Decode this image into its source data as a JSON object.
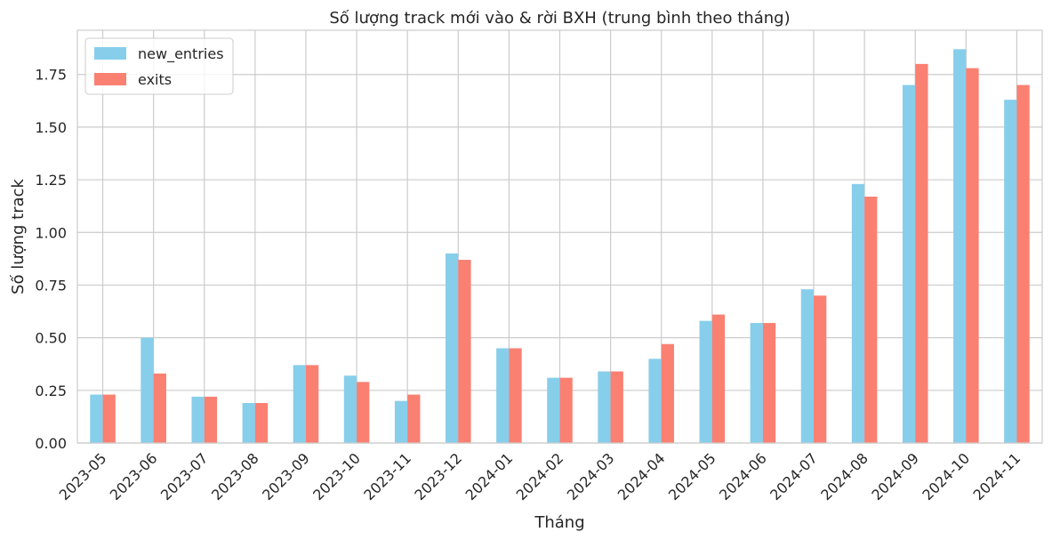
{
  "chart_data": {
    "type": "bar",
    "title": "Số lượng track mới vào & rời BXH (trung bình theo tháng)",
    "xlabel": "Tháng",
    "ylabel": "Số lượng track",
    "ylim": [
      0,
      1.96
    ],
    "yticks": [
      "0.00",
      "0.25",
      "0.50",
      "0.75",
      "1.00",
      "1.25",
      "1.50",
      "1.75"
    ],
    "grid": true,
    "legend_position": "top-left",
    "categories": [
      "2023-05",
      "2023-06",
      "2023-07",
      "2023-08",
      "2023-09",
      "2023-10",
      "2023-11",
      "2023-12",
      "2024-01",
      "2024-02",
      "2024-03",
      "2024-04",
      "2024-05",
      "2024-06",
      "2024-07",
      "2024-08",
      "2024-09",
      "2024-10",
      "2024-11"
    ],
    "series": [
      {
        "name": "new_entries",
        "color": "#87ceeb",
        "values": [
          0.23,
          0.5,
          0.22,
          0.19,
          0.37,
          0.32,
          0.2,
          0.9,
          0.45,
          0.31,
          0.34,
          0.4,
          0.58,
          0.57,
          0.73,
          1.23,
          1.7,
          1.87,
          1.63
        ]
      },
      {
        "name": "exits",
        "color": "#fa8072",
        "values": [
          0.23,
          0.33,
          0.22,
          0.19,
          0.37,
          0.29,
          0.23,
          0.87,
          0.45,
          0.31,
          0.34,
          0.47,
          0.61,
          0.57,
          0.7,
          1.17,
          1.8,
          1.78,
          1.7
        ]
      }
    ]
  }
}
